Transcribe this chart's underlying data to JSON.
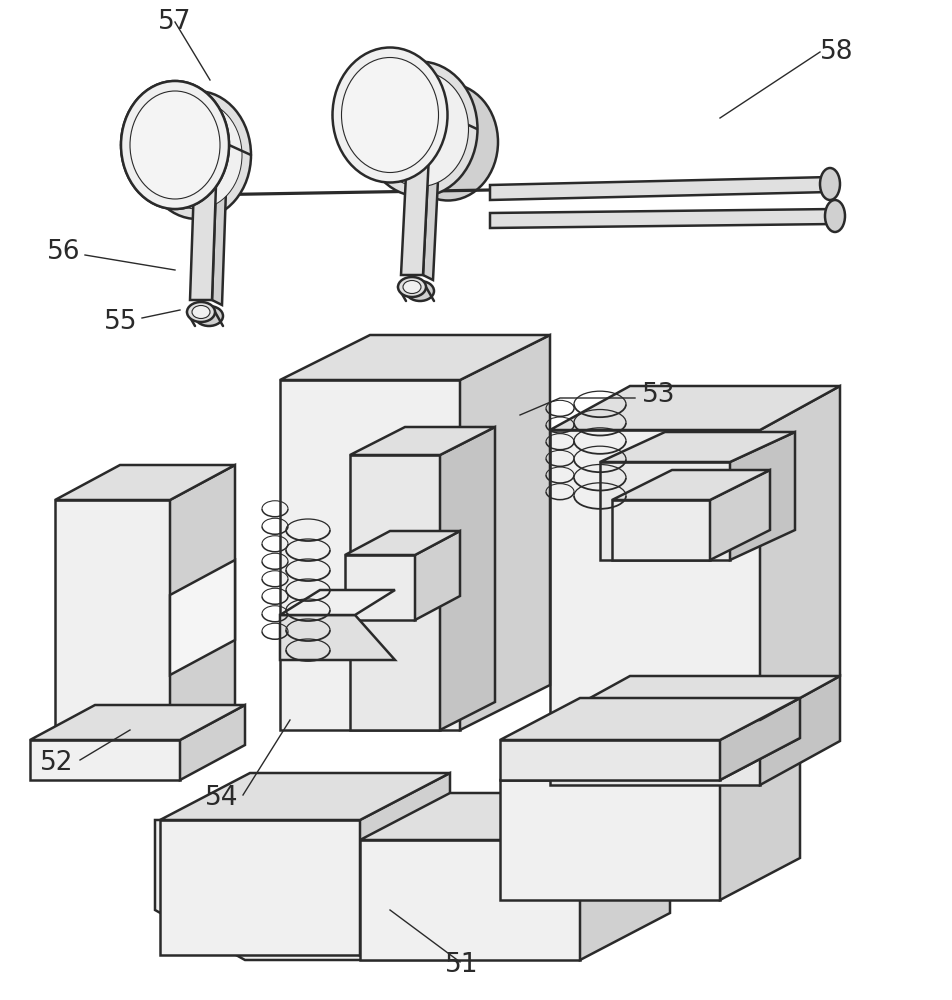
{
  "background_color": "#ffffff",
  "line_color": "#2a2a2a",
  "line_width": 1.8,
  "lw_thin": 1.0,
  "label_fontsize": 19,
  "fig_width": 9.52,
  "fig_height": 10.0,
  "dpi": 100,
  "shade_light": "#f0f0f0",
  "shade_mid": "#e0e0e0",
  "shade_dark": "#d0d0d0",
  "shade_darker": "#c4c4c4"
}
